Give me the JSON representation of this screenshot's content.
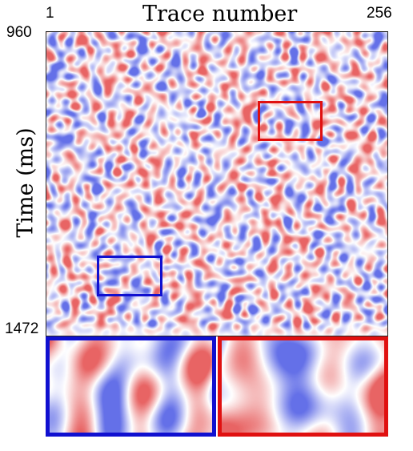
{
  "title": "Trace number",
  "ylabel": "Time (ms)",
  "x_axis": {
    "start_label": "1",
    "end_label": "256"
  },
  "y_axis": {
    "top_label": "960",
    "bottom_label": "1472"
  },
  "colors": {
    "positive": "#e03030",
    "negative": "#3040e0",
    "highlight_red": "#e01010",
    "highlight_blue": "#1010d0"
  }
}
